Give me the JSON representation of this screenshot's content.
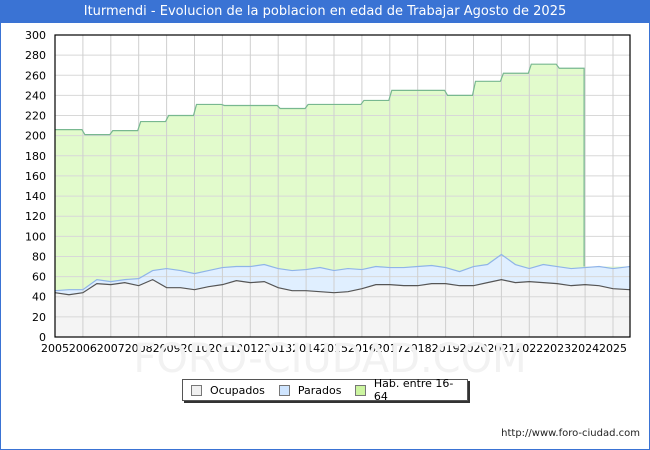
{
  "title": "Iturmendi - Evolucion de la poblacion en edad de Trabajar Agosto de 2025",
  "url": "http://www.foro-ciudad.com",
  "watermark": "FORO-CIUDAD.COM",
  "legend": [
    {
      "label": "Ocupados",
      "color": "#f0f0f0"
    },
    {
      "label": "Parados",
      "color": "#cfe5ff"
    },
    {
      "label": "Hab. entre 16-64",
      "color": "#ccf5a0"
    }
  ],
  "colors": {
    "title_bg": "#3a73d4",
    "hab_fill": "#e2fbcc",
    "hab_line": "#78b890",
    "parados_fill": "#e0efff",
    "parados_line": "#8fb4e8",
    "ocupados_fill": "#f4f4f4",
    "ocupados_line": "#555555"
  },
  "chart_data": {
    "type": "area",
    "title": "Iturmendi - Evolucion de la poblacion en edad de Trabajar Agosto de 2025",
    "xlabel": "",
    "ylabel": "",
    "ylim": [
      0,
      300
    ],
    "yticks": [
      0,
      20,
      40,
      60,
      80,
      100,
      120,
      140,
      160,
      180,
      200,
      220,
      240,
      260,
      280,
      300
    ],
    "xticks": [
      "2005",
      "2006",
      "2007",
      "2008",
      "2009",
      "2010",
      "2011",
      "2012",
      "2013",
      "2014",
      "2015",
      "2016",
      "2017",
      "2018",
      "2019",
      "2020",
      "2021",
      "2022",
      "2023",
      "2024",
      "2025"
    ],
    "grid": true,
    "legend_position": "bottom",
    "series": [
      {
        "name": "Hab. entre 16-64",
        "x": [
          2005,
          2006,
          2007,
          2008,
          2009,
          2010,
          2011,
          2012,
          2013,
          2014,
          2015,
          2016,
          2017,
          2018,
          2019,
          2020,
          2021,
          2022,
          2023
        ],
        "values": [
          206,
          201,
          205,
          214,
          220,
          231,
          230,
          230,
          227,
          231,
          231,
          235,
          245,
          245,
          240,
          254,
          262,
          271,
          267
        ]
      },
      {
        "name": "Parados (Ocupados+Parados)",
        "x": [
          2005,
          2005.5,
          2006,
          2006.5,
          2007,
          2007.5,
          2008,
          2008.5,
          2009,
          2009.5,
          2010,
          2010.5,
          2011,
          2011.5,
          2012,
          2012.5,
          2013,
          2013.5,
          2014,
          2014.5,
          2015,
          2015.5,
          2016,
          2016.5,
          2017,
          2017.5,
          2018,
          2018.5,
          2019,
          2019.5,
          2020,
          2020.5,
          2021,
          2021.5,
          2022,
          2022.5,
          2023,
          2023.5,
          2024,
          2024.5,
          2025,
          2025.6
        ],
        "values": [
          46,
          47,
          47,
          57,
          55,
          57,
          58,
          66,
          68,
          66,
          63,
          66,
          69,
          70,
          70,
          72,
          68,
          66,
          67,
          69,
          66,
          68,
          67,
          70,
          69,
          69,
          70,
          71,
          69,
          65,
          70,
          72,
          82,
          72,
          68,
          72,
          70,
          68,
          69,
          70,
          68,
          70
        ]
      },
      {
        "name": "Ocupados",
        "x": [
          2005,
          2005.5,
          2006,
          2006.5,
          2007,
          2007.5,
          2008,
          2008.5,
          2009,
          2009.5,
          2010,
          2010.5,
          2011,
          2011.5,
          2012,
          2012.5,
          2013,
          2013.5,
          2014,
          2014.5,
          2015,
          2015.5,
          2016,
          2016.5,
          2017,
          2017.5,
          2018,
          2018.5,
          2019,
          2019.5,
          2020,
          2020.5,
          2021,
          2021.5,
          2022,
          2022.5,
          2023,
          2023.5,
          2024,
          2024.5,
          2025,
          2025.6
        ],
        "values": [
          44,
          42,
          44,
          53,
          52,
          54,
          51,
          57,
          49,
          49,
          47,
          50,
          52,
          56,
          54,
          55,
          49,
          46,
          46,
          45,
          44,
          45,
          48,
          52,
          52,
          51,
          51,
          53,
          53,
          51,
          51,
          54,
          57,
          54,
          55,
          54,
          53,
          51,
          52,
          51,
          48,
          47
        ]
      }
    ]
  }
}
